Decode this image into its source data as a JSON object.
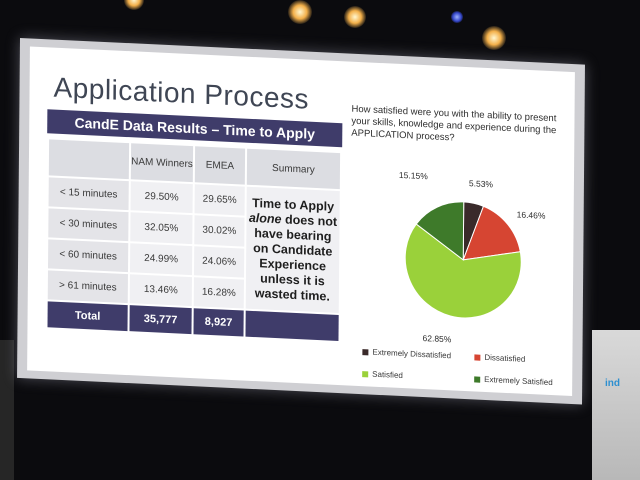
{
  "slide": {
    "title": "Application Process",
    "table_title": "CandE Data Results – Time to Apply",
    "columns": [
      "",
      "NAM Winners",
      "EMEA",
      "Summary"
    ],
    "rows": [
      {
        "label": "< 15 minutes",
        "nam": "29.50%",
        "emea": "29.65%"
      },
      {
        "label": "< 30 minutes",
        "nam": "32.05%",
        "emea": "30.02%"
      },
      {
        "label": "< 60 minutes",
        "nam": "24.99%",
        "emea": "24.06%"
      },
      {
        "label": "> 61 minutes",
        "nam": "13.46%",
        "emea": "16.28%"
      }
    ],
    "summary": {
      "part1": "Time to Apply",
      "emphasis": "alone",
      "part2": "does not have bearing on Candidate Experience unless it is wasted time."
    },
    "total": {
      "label": "Total",
      "nam": "35,777",
      "emea": "8,927"
    }
  },
  "chart_data": {
    "type": "pie",
    "title": "How satisfied were you with the ability to present your skills, knowledge and experience during the APPLICATION process?",
    "slices": [
      {
        "name": "Extremely Dissatisfied",
        "value": 5.53,
        "label": "5.53%",
        "color": "#3a2a2a"
      },
      {
        "name": "Dissatisfied",
        "value": 16.46,
        "label": "16.46%",
        "color": "#d64532"
      },
      {
        "name": "Satisfied",
        "value": 62.85,
        "label": "62.85%",
        "color": "#9ad13a"
      },
      {
        "name": "Extremely Satisfied",
        "value": 15.15,
        "label": "15.15%",
        "color": "#3e7a2a"
      }
    ],
    "legend": "bottom"
  },
  "background": {
    "side_banner_text": "ind"
  }
}
